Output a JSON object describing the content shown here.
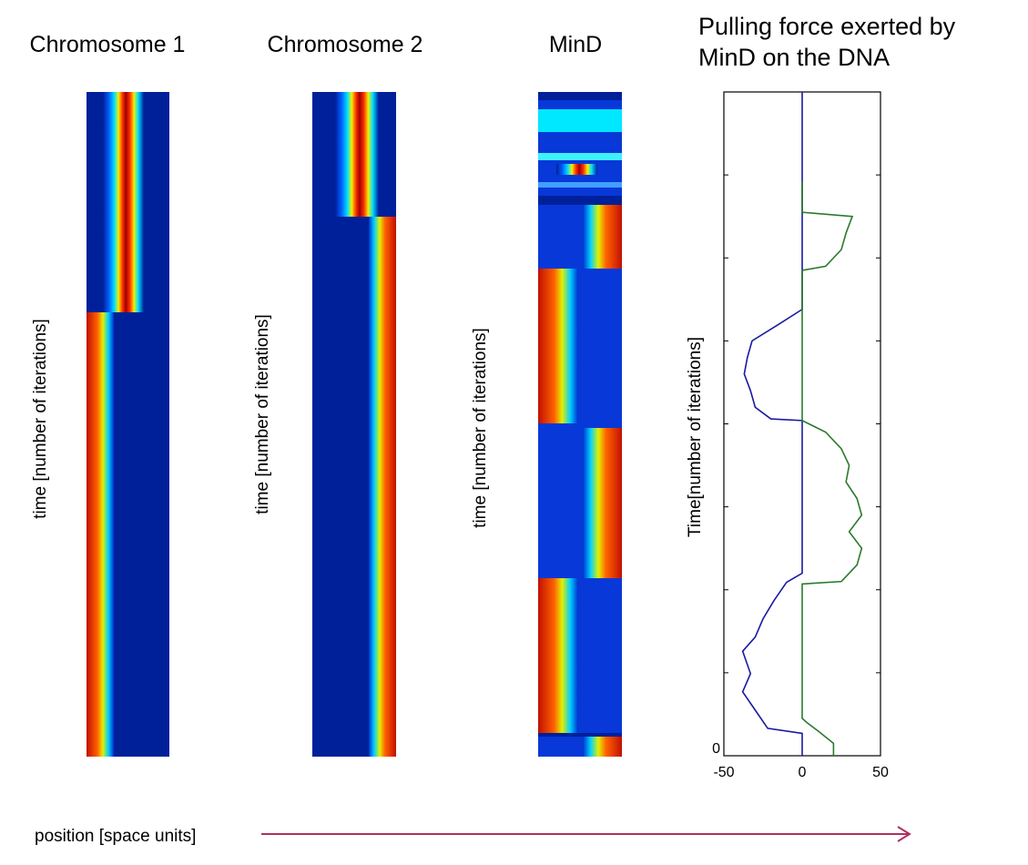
{
  "panels": [
    {
      "title": "Chromosome 1",
      "ylabel": "time [number of iterations]"
    },
    {
      "title": "Chromosome 2",
      "ylabel": "time [number of iterations]"
    },
    {
      "title": "MinD",
      "ylabel": "time [number of iterations]"
    }
  ],
  "xlabel": "position [space units]",
  "chart_data": {
    "type": "line",
    "title": "Pulling force exerted by MinD on the DNA",
    "ylabel": "Time[number of iterations]",
    "xlim": [
      -50,
      50
    ],
    "xticks": [
      -50,
      0,
      50
    ],
    "ylim": [
      0,
      8
    ],
    "yticks": [
      0,
      {
        "value": 1,
        "label": null
      },
      {
        "value": 2,
        "label": null
      },
      {
        "value": 3,
        "label": null
      },
      {
        "value": 4,
        "label": null
      },
      {
        "value": 5,
        "label": null
      },
      {
        "value": 6,
        "label": null
      },
      {
        "value": 7,
        "label": null
      }
    ],
    "series": [
      {
        "color": "#1a1aa0",
        "x": [
          0,
          0,
          -22,
          -30,
          -38,
          -33,
          -38,
          -30,
          -25,
          -18,
          -10,
          0,
          0,
          -20,
          -30,
          -33,
          -37,
          -35,
          -32,
          -15,
          0,
          0
        ],
        "values": [
          0,
          0.27,
          0.33,
          0.55,
          0.77,
          0.99,
          1.26,
          1.43,
          1.65,
          1.87,
          2.09,
          2.2,
          4.04,
          4.06,
          4.2,
          4.4,
          4.6,
          4.8,
          5.0,
          5.2,
          5.38,
          8
        ]
      },
      {
        "color": "#2a7a2a",
        "x": [
          20,
          20,
          10,
          3,
          0,
          0,
          25,
          35,
          38,
          30,
          38,
          35,
          28,
          30,
          25,
          15,
          0,
          0,
          15,
          25,
          28,
          32,
          0,
          0
        ],
        "values": [
          0,
          0.15,
          0.3,
          0.4,
          0.45,
          2.07,
          2.1,
          2.3,
          2.5,
          2.7,
          2.9,
          3.1,
          3.3,
          3.5,
          3.7,
          3.9,
          4.04,
          5.85,
          5.9,
          6.1,
          6.3,
          6.5,
          6.55,
          6.92
        ]
      }
    ]
  }
}
